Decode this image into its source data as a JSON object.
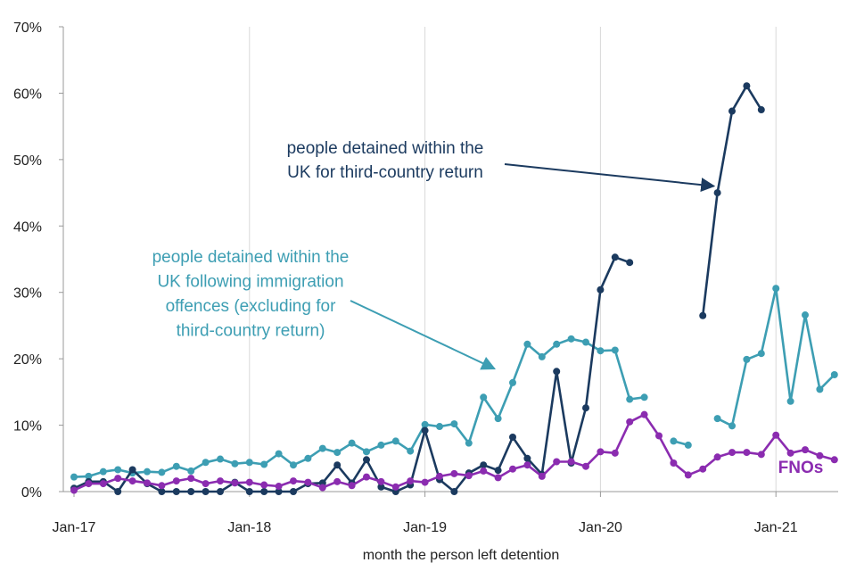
{
  "chart_data": {
    "type": "line",
    "title": "",
    "xlabel": "month the person left detention",
    "ylabel": "",
    "ylim": [
      0,
      70
    ],
    "y_ticks": [
      "0%",
      "10%",
      "20%",
      "30%",
      "40%",
      "50%",
      "60%",
      "70%"
    ],
    "y_tick_values": [
      0,
      10,
      20,
      30,
      40,
      50,
      60,
      70
    ],
    "x_ticks": [
      "Jan-17",
      "Jan-18",
      "Jan-19",
      "Jan-20",
      "Jan-21"
    ],
    "x_tick_indices": [
      0,
      12,
      24,
      36,
      48
    ],
    "grid": "vertical",
    "n_months": 53,
    "series": [
      {
        "name": "people detained within the UK following immigration offences (excluding for third-country return)",
        "color": "#3d9eb3",
        "values": [
          2.2,
          2.3,
          3.0,
          3.3,
          2.8,
          3.0,
          2.9,
          3.8,
          3.1,
          4.4,
          4.9,
          4.2,
          4.4,
          4.1,
          5.7,
          4.0,
          5.0,
          6.5,
          5.9,
          7.3,
          6.0,
          7.0,
          7.6,
          6.1,
          10.1,
          9.8,
          10.2,
          7.3,
          14.2,
          11.0,
          16.4,
          22.2,
          20.3,
          22.2,
          23.0,
          22.5,
          21.2,
          21.3,
          13.9,
          14.2,
          null,
          7.6,
          7.0,
          null,
          11.0,
          9.9,
          19.9,
          20.8,
          30.6,
          13.6,
          26.6,
          15.4,
          17.6
        ]
      },
      {
        "name": "people detained within the UK for third-country return",
        "color": "#1b3a5f",
        "values": [
          0.5,
          1.5,
          1.5,
          0.0,
          3.3,
          1.2,
          0.0,
          0.0,
          0.0,
          0.0,
          0.0,
          1.4,
          0.0,
          0.0,
          0.0,
          0.0,
          1.2,
          1.3,
          4.0,
          1.3,
          4.8,
          0.7,
          0.0,
          1.0,
          9.2,
          1.8,
          0.0,
          2.8,
          4.0,
          3.2,
          8.2,
          5.0,
          2.6,
          18.1,
          4.3,
          12.6,
          30.4,
          35.3,
          34.5,
          null,
          null,
          null,
          null,
          26.5,
          45.0,
          57.3,
          61.1,
          57.5,
          null,
          null,
          null,
          null,
          null
        ]
      },
      {
        "name": "FNOs",
        "color": "#8b2cb0",
        "values": [
          0.2,
          1.2,
          1.2,
          2.0,
          1.6,
          1.3,
          0.9,
          1.6,
          2.0,
          1.2,
          1.6,
          1.3,
          1.4,
          1.0,
          0.8,
          1.6,
          1.4,
          0.6,
          1.5,
          0.9,
          2.2,
          1.5,
          0.7,
          1.6,
          1.4,
          2.3,
          2.7,
          2.4,
          3.1,
          2.1,
          3.4,
          4.0,
          2.3,
          4.5,
          4.5,
          3.8,
          6.0,
          5.8,
          10.5,
          11.6,
          8.4,
          4.3,
          2.5,
          3.4,
          5.2,
          5.9,
          5.9,
          5.6,
          8.5,
          5.8,
          6.3,
          5.4,
          4.8
        ]
      }
    ],
    "annotations": [
      {
        "lines": [
          "people detained within the",
          "UK for third-country return"
        ],
        "series": 1,
        "color": "#1b3a5f",
        "arrow_to_month": 44,
        "arrow_to_value": 46
      },
      {
        "lines": [
          "people detained within the",
          "UK following immigration",
          "offences (excluding for",
          "third-country return)"
        ],
        "series": 0,
        "color": "#3d9eb3",
        "arrow_to_month": 29,
        "arrow_to_value": 18.5
      },
      {
        "lines": [
          "FNOs"
        ],
        "series": 2,
        "color": "#8b2cb0"
      }
    ]
  }
}
